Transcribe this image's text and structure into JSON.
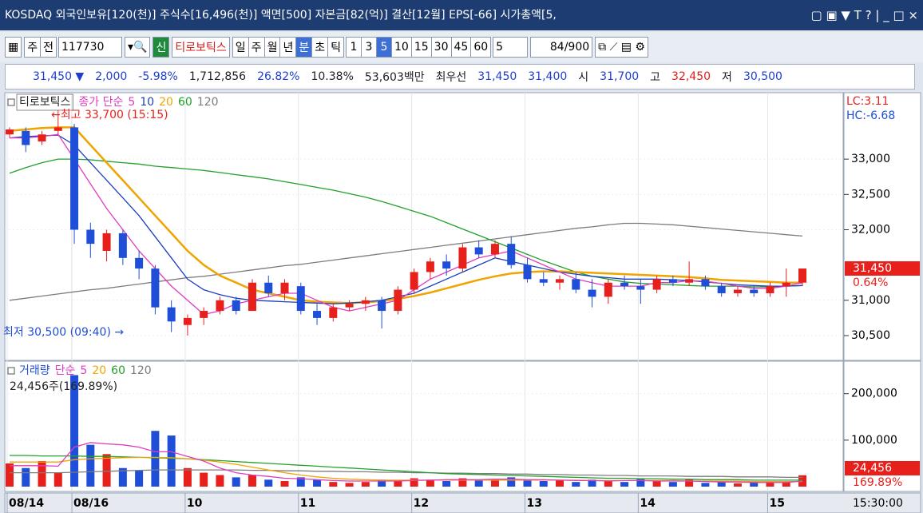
{
  "title_bar": {
    "text": "KOSDAQ 외국인보유[120(천)] 주식수[16,496(천)] 액면[500] 자본금[82(억)] 결산[12월] EPS[-66] 시가총액[5,"
  },
  "toolbar": {
    "type_buttons": [
      "주",
      "전"
    ],
    "code": "117730",
    "badge": "신",
    "name": "티로보틱스",
    "periods": [
      "일",
      "주",
      "월",
      "년",
      "분",
      "초",
      "틱"
    ],
    "active_period": 4,
    "intervals": [
      "1",
      "3",
      "5",
      "10",
      "15",
      "30",
      "45",
      "60"
    ],
    "active_interval": 2,
    "count": "5",
    "range": "84/900"
  },
  "info_bar": [
    {
      "text": "31,450 ▼",
      "color": "#1f3fcf"
    },
    {
      "text": "2,000",
      "color": "#1f3fcf"
    },
    {
      "text": "-5.98%",
      "color": "#1f3fcf"
    },
    {
      "text": "1,712,856",
      "color": "#222222"
    },
    {
      "text": "26.82%",
      "color": "#1f3fcf"
    },
    {
      "text": "10.38%",
      "color": "#222222"
    },
    {
      "text": "53,603백만",
      "color": "#222222"
    },
    {
      "text": "최우선",
      "color": "#222222"
    },
    {
      "text": "31,450",
      "color": "#1f3fcf"
    },
    {
      "text": "31,400",
      "color": "#1f3fcf"
    },
    {
      "text": "시",
      "color": "#222222"
    },
    {
      "text": "31,700",
      "color": "#1f3fcf"
    },
    {
      "text": "고",
      "color": "#222222"
    },
    {
      "text": "32,450",
      "color": "#e0201c"
    },
    {
      "text": "저",
      "color": "#222222"
    },
    {
      "text": "30,500",
      "color": "#1f3fcf"
    }
  ],
  "chart_data": [
    {
      "type": "candlestick",
      "name": "티로보틱스",
      "legend_prefix": "종가 단순",
      "up_color": "#e8201c",
      "down_color": "#1f4fd8",
      "categories": [
        "08/14",
        null,
        null,
        null,
        "08/16",
        null,
        null,
        null,
        null,
        null,
        null,
        "10",
        null,
        null,
        null,
        null,
        null,
        null,
        "11",
        null,
        null,
        null,
        null,
        null,
        null,
        "12",
        null,
        null,
        null,
        null,
        null,
        null,
        "13",
        null,
        null,
        null,
        null,
        null,
        null,
        "14",
        null,
        null,
        null,
        null,
        null,
        null,
        null,
        "15",
        null,
        null
      ],
      "open": [
        33350,
        33400,
        33250,
        33400,
        33450,
        32000,
        31700,
        31950,
        31600,
        31450,
        30900,
        30650,
        30750,
        30850,
        31000,
        30850,
        31250,
        31100,
        31200,
        30850,
        30750,
        30900,
        30950,
        31000,
        30850,
        31150,
        31400,
        31550,
        31450,
        31750,
        31650,
        31800,
        31500,
        31300,
        31250,
        31300,
        31150,
        31050,
        31250,
        31200,
        31150,
        31300,
        31250,
        31300,
        31200,
        31100,
        31150,
        31100,
        31200,
        31250
      ],
      "high": [
        33450,
        33450,
        33400,
        33700,
        33500,
        32100,
        32000,
        32000,
        31700,
        31500,
        31000,
        30800,
        30900,
        31050,
        31050,
        31300,
        31350,
        31300,
        31250,
        30950,
        30950,
        31000,
        31050,
        31050,
        31200,
        31450,
        31600,
        31650,
        31800,
        31850,
        31850,
        31900,
        31600,
        31400,
        31350,
        31400,
        31300,
        31300,
        31350,
        31300,
        31350,
        31350,
        31550,
        31350,
        31250,
        31200,
        31200,
        31250,
        31450,
        31450
      ],
      "low": [
        33300,
        33100,
        33200,
        33350,
        31800,
        31600,
        31550,
        31500,
        31300,
        30800,
        30550,
        30500,
        30650,
        30800,
        30800,
        30850,
        31050,
        31000,
        30800,
        30650,
        30700,
        30850,
        30850,
        30600,
        30800,
        31100,
        31300,
        31350,
        31400,
        31600,
        31600,
        31450,
        31250,
        31200,
        31150,
        31100,
        30900,
        30950,
        31150,
        30950,
        31100,
        31200,
        31200,
        31150,
        31050,
        31050,
        31050,
        31050,
        31050,
        31200
      ],
      "close": [
        33420,
        33200,
        33350,
        33450,
        32000,
        31800,
        31950,
        31600,
        31450,
        30900,
        30700,
        30750,
        30850,
        31000,
        30850,
        31250,
        31100,
        31250,
        30850,
        30750,
        30900,
        30950,
        31000,
        30850,
        31150,
        31400,
        31550,
        31450,
        31750,
        31650,
        31800,
        31500,
        31300,
        31250,
        31300,
        31150,
        31050,
        31250,
        31200,
        31150,
        31300,
        31250,
        31300,
        31200,
        31100,
        31150,
        31100,
        31200,
        31250,
        31450
      ],
      "series": [
        {
          "name": "5",
          "color": "#e03cc0",
          "values": [
            33300,
            33300,
            33320,
            33350,
            33000,
            32650,
            32300,
            32000,
            31700,
            31450,
            31200,
            31000,
            30800,
            30850,
            30950,
            31000,
            31050,
            31100,
            31100,
            31000,
            30900,
            30850,
            30900,
            30950,
            31000,
            31150,
            31300,
            31400,
            31500,
            31600,
            31650,
            31700,
            31600,
            31500,
            31400,
            31300,
            31250,
            31200,
            31200,
            31200,
            31250,
            31250,
            31280,
            31270,
            31240,
            31200,
            31170,
            31170,
            31200,
            31250
          ]
        },
        {
          "name": "10",
          "color": "#1c3fbf",
          "values": [
            33300,
            33320,
            33330,
            33340,
            33200,
            32950,
            32700,
            32450,
            32200,
            31900,
            31600,
            31300,
            31150,
            31080,
            31030,
            31000,
            30990,
            30980,
            30970,
            30960,
            30950,
            30960,
            30980,
            31000,
            31050,
            31100,
            31200,
            31300,
            31400,
            31500,
            31600,
            31550,
            31500,
            31450,
            31400,
            31370,
            31340,
            31320,
            31300,
            31300,
            31300,
            31290,
            31280,
            31260,
            31240,
            31220,
            31210,
            31200,
            31200,
            31210
          ]
        },
        {
          "name": "20",
          "color": "#f0a400",
          "values": [
            33400,
            33420,
            33440,
            33450,
            33450,
            33200,
            32950,
            32700,
            32450,
            32200,
            31950,
            31700,
            31500,
            31350,
            31250,
            31150,
            31100,
            31050,
            31000,
            30980,
            30970,
            30960,
            30970,
            30990,
            31020,
            31060,
            31110,
            31170,
            31230,
            31290,
            31340,
            31380,
            31400,
            31410,
            31410,
            31400,
            31390,
            31380,
            31370,
            31360,
            31350,
            31340,
            31330,
            31310,
            31290,
            31280,
            31270,
            31260,
            31250,
            31250
          ]
        },
        {
          "name": "60",
          "color": "#22a02a",
          "values": [
            32800,
            32880,
            32950,
            33000,
            33000,
            32990,
            32970,
            32950,
            32930,
            32900,
            32880,
            32860,
            32840,
            32810,
            32780,
            32750,
            32720,
            32680,
            32640,
            32600,
            32560,
            32510,
            32460,
            32400,
            32330,
            32260,
            32190,
            32100,
            32010,
            31920,
            31830,
            31740,
            31650,
            31560,
            31480,
            31400,
            31340,
            31300,
            31260,
            31240,
            31230,
            31220,
            31210,
            31200,
            31200,
            31200,
            31190,
            31190,
            31200,
            31210
          ]
        },
        {
          "name": "120",
          "color": "#7c7c7c",
          "values": [
            31000,
            31030,
            31060,
            31090,
            31120,
            31150,
            31170,
            31200,
            31230,
            31260,
            31290,
            31320,
            31340,
            31370,
            31400,
            31430,
            31460,
            31490,
            31510,
            31540,
            31570,
            31600,
            31630,
            31660,
            31690,
            31720,
            31750,
            31780,
            31810,
            31840,
            31870,
            31900,
            31930,
            31960,
            31990,
            32020,
            32040,
            32070,
            32090,
            32090,
            32080,
            32070,
            32050,
            32030,
            32010,
            31990,
            31970,
            31950,
            31930,
            31910
          ]
        }
      ],
      "ylim": [
        30160,
        33930
      ],
      "yticks": [
        {
          "value": 30500,
          "label": "30,500"
        },
        {
          "value": 31000,
          "label": "31,000"
        },
        {
          "value": 32000,
          "label": "32,000"
        },
        {
          "value": 32500,
          "label": "32,500"
        },
        {
          "value": 33000,
          "label": "33,000"
        }
      ],
      "annotations": [
        "←최고 33,700 (15:15)",
        "최저 30,500 (09:40) →"
      ],
      "last_label": "31,450",
      "change_label": "0.64%",
      "lc_label": "LC:3.11",
      "hc_label": "HC:-6.68"
    },
    {
      "type": "bar",
      "name": "거래량",
      "legend_prefix": "단순",
      "subtitle": "24,456주(169.89%)",
      "values": [
        50000,
        40000,
        55000,
        30000,
        240000,
        90000,
        70000,
        40000,
        35000,
        120000,
        110000,
        40000,
        30000,
        25000,
        20000,
        25000,
        15000,
        12000,
        20000,
        15000,
        10000,
        8000,
        10000,
        15000,
        12000,
        18000,
        15000,
        12000,
        18000,
        14000,
        16000,
        20000,
        15000,
        12000,
        14000,
        10000,
        15000,
        12000,
        10000,
        18000,
        12000,
        10000,
        15000,
        8000,
        10000,
        7000,
        9000,
        8000,
        10000,
        24456
      ],
      "series": [
        {
          "name": "5",
          "color": "#e03cc0",
          "values": [
            45000,
            45000,
            45000,
            44000,
            85000,
            95000,
            92000,
            90000,
            85000,
            75000,
            75000,
            65000,
            55000,
            40000,
            30000,
            25000,
            22000,
            18000,
            17000,
            15000,
            13000,
            12000,
            12000,
            12000,
            12000,
            13000,
            14000,
            15000,
            15000,
            15000,
            16000,
            16000,
            15000,
            15000,
            14000,
            13000,
            13000,
            12000,
            13000,
            13000,
            12000,
            12000,
            12000,
            11000,
            10000,
            10000,
            9000,
            9000,
            9000,
            12000
          ]
        },
        {
          "name": "20",
          "color": "#f0a400",
          "values": [
            53000,
            53000,
            53000,
            53000,
            58000,
            60000,
            61000,
            62000,
            63000,
            63000,
            62000,
            60000,
            57000,
            53000,
            48000,
            42000,
            36000,
            30000,
            25000,
            21000,
            18000,
            16000,
            15000,
            14000,
            14000,
            14000,
            14000,
            14000,
            14000,
            14000,
            14000,
            14000,
            14000,
            14000,
            14000,
            14000,
            13000,
            13000,
            13000,
            13000,
            13000,
            13000,
            12000,
            12000,
            12000,
            12000,
            11000,
            11000,
            11000,
            11000
          ]
        },
        {
          "name": "60",
          "color": "#22a02a",
          "values": [
            67000,
            67000,
            66000,
            66000,
            66000,
            65000,
            65000,
            64000,
            63000,
            62000,
            61000,
            60000,
            58000,
            56000,
            54000,
            52000,
            50000,
            48000,
            46000,
            44000,
            42000,
            40000,
            38000,
            36000,
            34000,
            32000,
            30000,
            28000,
            27000,
            26000,
            25000,
            24000,
            23000,
            22000,
            21000,
            20000,
            19000,
            18000,
            18000,
            17000,
            17000,
            16000,
            16000,
            15000,
            15000,
            15000,
            14000,
            14000,
            14000,
            14000
          ]
        },
        {
          "name": "120",
          "color": "#7c7c7c",
          "values": [
            30000,
            30000,
            30000,
            30000,
            31000,
            32000,
            33000,
            34000,
            35000,
            36000,
            36000,
            36000,
            36000,
            36000,
            36000,
            35000,
            35000,
            34000,
            34000,
            33000,
            33000,
            32000,
            32000,
            31000,
            31000,
            30000,
            30000,
            29000,
            29000,
            28000,
            28000,
            27000,
            27000,
            26000,
            26000,
            25000,
            25000,
            24000,
            24000,
            23000,
            23000,
            23000,
            22000,
            22000,
            22000,
            21000,
            21000,
            21000,
            20000,
            20000
          ]
        }
      ],
      "ylim": [
        0,
        270000
      ],
      "yticks": [
        {
          "value": 100000,
          "label": "100,000"
        },
        {
          "value": 200000,
          "label": "200,000"
        }
      ],
      "last_label": "24,456",
      "change_label": "169.89%",
      "time_label": "15:30:00"
    }
  ]
}
